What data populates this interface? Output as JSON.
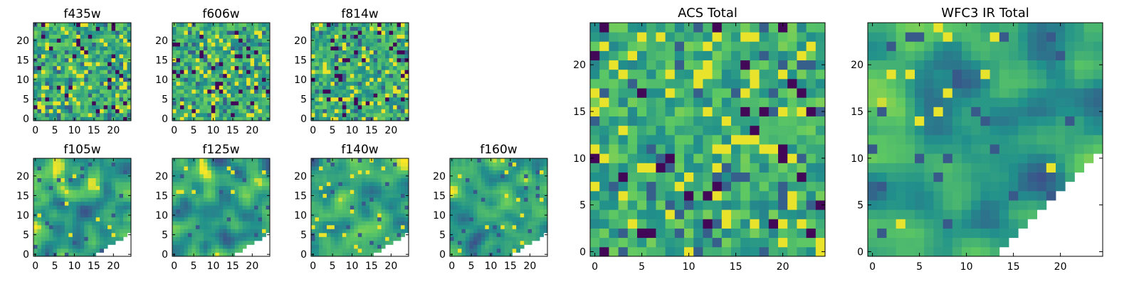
{
  "chart_data": [
    {
      "type": "heatmap",
      "title": "f435w",
      "xticks": [
        "0",
        "5",
        "10",
        "15",
        "20"
      ],
      "yticks": [
        "0",
        "5",
        "10",
        "15",
        "20"
      ],
      "xlim": [
        -0.5,
        24.5
      ],
      "ylim": [
        -0.5,
        24.5
      ],
      "colormap": "viridis",
      "grid": false
    },
    {
      "type": "heatmap",
      "title": "f606w",
      "xticks": [
        "0",
        "5",
        "10",
        "15",
        "20"
      ],
      "yticks": [
        "0",
        "5",
        "10",
        "15",
        "20"
      ],
      "xlim": [
        -0.5,
        24.5
      ],
      "ylim": [
        -0.5,
        24.5
      ],
      "colormap": "viridis",
      "grid": false
    },
    {
      "type": "heatmap",
      "title": "f814w",
      "xticks": [
        "0",
        "5",
        "10",
        "15",
        "20"
      ],
      "yticks": [
        "0",
        "5",
        "10",
        "15",
        "20"
      ],
      "xlim": [
        -0.5,
        24.5
      ],
      "ylim": [
        -0.5,
        24.5
      ],
      "colormap": "viridis",
      "grid": false
    },
    {
      "type": "heatmap",
      "title": "f105w",
      "xticks": [
        "0",
        "5",
        "10",
        "15",
        "20"
      ],
      "yticks": [
        "0",
        "5",
        "10",
        "15",
        "20"
      ],
      "xlim": [
        -0.5,
        24.5
      ],
      "ylim": [
        -0.5,
        24.5
      ],
      "colormap": "viridis",
      "grid": false
    },
    {
      "type": "heatmap",
      "title": "f125w",
      "xticks": [
        "0",
        "5",
        "10",
        "15",
        "20"
      ],
      "yticks": [
        "0",
        "5",
        "10",
        "15",
        "20"
      ],
      "xlim": [
        -0.5,
        24.5
      ],
      "ylim": [
        -0.5,
        24.5
      ],
      "colormap": "viridis",
      "grid": false
    },
    {
      "type": "heatmap",
      "title": "f140w",
      "xticks": [
        "0",
        "5",
        "10",
        "15",
        "20"
      ],
      "yticks": [
        "0",
        "5",
        "10",
        "15",
        "20"
      ],
      "xlim": [
        -0.5,
        24.5
      ],
      "ylim": [
        -0.5,
        24.5
      ],
      "colormap": "viridis",
      "grid": false
    },
    {
      "type": "heatmap",
      "title": "f160w",
      "xticks": [
        "0",
        "5",
        "10",
        "15",
        "20"
      ],
      "yticks": [
        "0",
        "5",
        "10",
        "15",
        "20"
      ],
      "xlim": [
        -0.5,
        24.5
      ],
      "ylim": [
        -0.5,
        24.5
      ],
      "colormap": "viridis",
      "grid": false
    },
    {
      "type": "heatmap",
      "title": "ACS Total",
      "xticks": [
        "0",
        "5",
        "10",
        "15",
        "20"
      ],
      "yticks": [
        "0",
        "5",
        "10",
        "15",
        "20"
      ],
      "xlim": [
        -0.5,
        24.5
      ],
      "ylim": [
        -0.5,
        24.5
      ],
      "colormap": "viridis",
      "grid": false
    },
    {
      "type": "heatmap",
      "title": "WFC3 IR Total",
      "xticks": [
        "0",
        "5",
        "10",
        "15",
        "20"
      ],
      "yticks": [
        "0",
        "5",
        "10",
        "15",
        "20"
      ],
      "xlim": [
        -0.5,
        24.5
      ],
      "ylim": [
        -0.5,
        24.5
      ],
      "colormap": "viridis",
      "grid": false
    }
  ],
  "colormap_stops": [
    "#440154",
    "#3b528b",
    "#21918c",
    "#5ec962",
    "#fde725"
  ]
}
